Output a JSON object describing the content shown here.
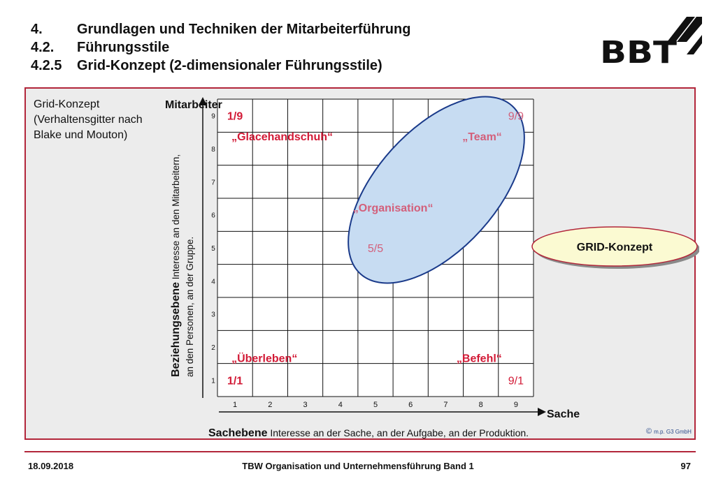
{
  "header": {
    "lines": [
      {
        "num": "4.",
        "text": "Grundlagen und Techniken der Mitarbeiterführung"
      },
      {
        "num": "4.2.",
        "text": "Führungsstile"
      },
      {
        "num": "4.2.5",
        "text": "Grid-Konzept (2-dimensionaler Führungsstile)"
      }
    ],
    "logo_text": "BBT"
  },
  "intro": {
    "line1": "Grid-Konzept",
    "line2": "(Verhaltensgitter nach",
    "line3": "Blake und Mouton)"
  },
  "chart": {
    "y_axis_title": "Mitarbeiter",
    "x_axis_title": "Sache",
    "y_label_bold": "Beziehungsebene",
    "y_label_rest": " Interesse an den Mitarbeitern,",
    "y_label_line2": "an den Personen, an der Gruppe.",
    "x_label_bold": "Sachebene",
    "x_label_rest": " Interesse an der Sache, an der Aufgabe, an der Produktion.",
    "x_ticks": [
      "1",
      "2",
      "3",
      "4",
      "5",
      "6",
      "7",
      "8",
      "9"
    ],
    "y_ticks": [
      "1",
      "2",
      "3",
      "4",
      "5",
      "6",
      "7",
      "8",
      "9"
    ]
  },
  "chart_data": {
    "type": "table",
    "x_range": [
      1,
      9
    ],
    "y_range": [
      1,
      9
    ],
    "points": [
      {
        "code": "1/9",
        "style": "„Glacehandschuh“",
        "x": 1,
        "y": 9
      },
      {
        "code": "9/9",
        "style": "„Team“",
        "x": 9,
        "y": 9
      },
      {
        "code": "5/5",
        "style": "„Organisation“",
        "x": 5,
        "y": 5
      },
      {
        "code": "1/1",
        "style": "„Überleben“",
        "x": 1,
        "y": 1
      },
      {
        "code": "9/1",
        "style": "„Befehl“",
        "x": 9,
        "y": 1
      }
    ]
  },
  "callout": {
    "label": "GRID-Konzept"
  },
  "copyright": "m.p. G3 GmbH",
  "copyright_symbol": "©",
  "footer": {
    "date": "18.09.2018",
    "center": "TBW Organisation und Unternehmensführung Band 1",
    "page": "97"
  },
  "colors": {
    "accent": "#b2263a",
    "label_red": "#d21a36",
    "label_pink": "#d35f7a",
    "ellipse_fill": "#c7dcf2",
    "ellipse_stroke": "#1a3a8a",
    "callout_fill": "#fbfad2",
    "callout_stroke": "#b2263a"
  }
}
